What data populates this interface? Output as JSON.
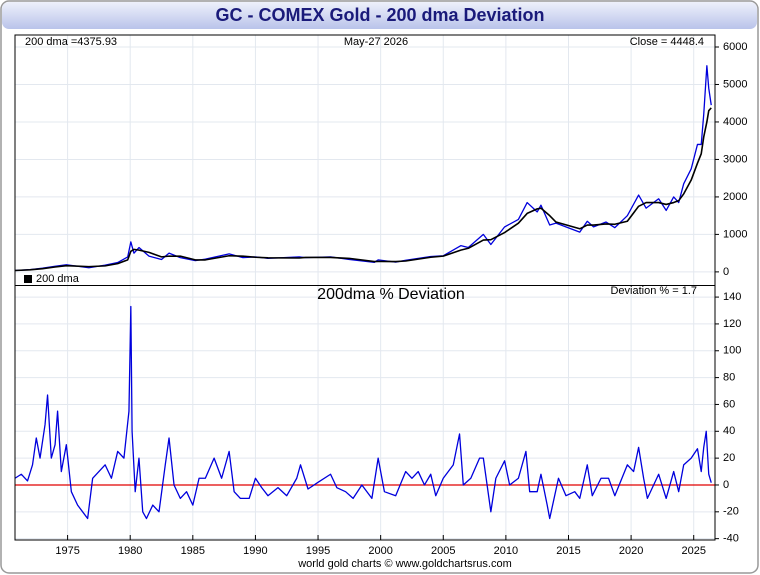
{
  "chart_data": [
    {
      "type": "line",
      "title": "GC - COMEX Gold - 200 dma Deviation",
      "dma_label": "200 dma =4375.93",
      "date": "May-27  2026",
      "close_label": "Close = 4448.4",
      "x": [
        1970.8,
        1972,
        1973,
        1974,
        1974.9,
        1976.7,
        1978,
        1979,
        1979.8,
        1980.05,
        1980.3,
        1980.7,
        1981.5,
        1982.5,
        1983.1,
        1984,
        1985.2,
        1986,
        1987.9,
        1989,
        1990,
        1991,
        1993.5,
        1994,
        1996,
        1997.5,
        1999.5,
        1999.8,
        2001.2,
        2002,
        2003,
        2004,
        2005,
        2006.4,
        2007,
        2008.2,
        2008.8,
        2009.9,
        2011,
        2011.7,
        2012.5,
        2012.8,
        2013.5,
        2014,
        2015.9,
        2016.5,
        2017,
        2018,
        2018.7,
        2019.7,
        2020.6,
        2021.2,
        2022.2,
        2022.8,
        2023.4,
        2023.8,
        2024.2,
        2024.8,
        2025.3,
        2025.6,
        2025.8,
        2026.05,
        2026.2,
        2026.4
      ],
      "series": [
        {
          "color": "#0000dd",
          "values": [
            37,
            60,
            100,
            150,
            190,
            110,
            180,
            250,
            400,
            800,
            500,
            650,
            420,
            330,
            500,
            380,
            300,
            340,
            480,
            380,
            400,
            360,
            400,
            380,
            400,
            330,
            255,
            320,
            260,
            310,
            360,
            410,
            430,
            700,
            650,
            1000,
            730,
            1200,
            1400,
            1850,
            1600,
            1780,
            1250,
            1300,
            1060,
            1350,
            1200,
            1330,
            1180,
            1500,
            2050,
            1700,
            1950,
            1640,
            2000,
            1850,
            2350,
            2750,
            3400,
            3400,
            4200,
            5500,
            4900,
            4448.4
          ]
        },
        {
          "name": "200 dma",
          "color": "#000000",
          "values": [
            37,
            55,
            85,
            130,
            165,
            140,
            160,
            220,
            320,
            550,
            600,
            580,
            520,
            400,
            420,
            420,
            320,
            320,
            430,
            420,
            390,
            375,
            370,
            385,
            385,
            360,
            275,
            280,
            275,
            290,
            340,
            390,
            420,
            580,
            630,
            850,
            860,
            1050,
            1300,
            1560,
            1680,
            1700,
            1500,
            1330,
            1150,
            1250,
            1250,
            1280,
            1270,
            1350,
            1750,
            1850,
            1850,
            1800,
            1850,
            1900,
            2080,
            2450,
            2900,
            3150,
            3600,
            4000,
            4300,
            4375.93
          ]
        }
      ],
      "xlim": [
        1970.8,
        2026.7
      ],
      "xticks": [
        1975,
        1980,
        1985,
        1990,
        1995,
        2000,
        2005,
        2010,
        2015,
        2020,
        2025
      ],
      "ylim": [
        -350,
        6320
      ],
      "yticks": [
        0,
        1000,
        2000,
        3000,
        4000,
        5000,
        6000
      ],
      "grid": true
    },
    {
      "type": "line",
      "title": "200dma  %  Deviation",
      "deviation_label": "Deviation % = 1.7",
      "footer": "world gold charts © www.goldchartsrus.com",
      "x": [
        1970.8,
        1971.3,
        1971.8,
        1972.2,
        1972.5,
        1972.8,
        1973.2,
        1973.4,
        1973.7,
        1974.0,
        1974.2,
        1974.5,
        1974.9,
        1975.3,
        1975.8,
        1976.2,
        1976.6,
        1977.0,
        1977.5,
        1978.0,
        1978.5,
        1979.0,
        1979.5,
        1979.9,
        1980.05,
        1980.15,
        1980.4,
        1980.7,
        1981.0,
        1981.3,
        1981.8,
        1982.3,
        1982.8,
        1983.1,
        1983.5,
        1984.0,
        1984.5,
        1985.0,
        1985.5,
        1986.0,
        1986.7,
        1987.3,
        1987.9,
        1988.3,
        1988.8,
        1989.5,
        1990.0,
        1990.5,
        1991.0,
        1991.8,
        1992.5,
        1993.3,
        1993.6,
        1994.2,
        1995,
        1996,
        1996.5,
        1997.2,
        1997.8,
        1998.5,
        1999.3,
        1999.8,
        2000.3,
        2001.2,
        2002,
        2002.5,
        2003,
        2003.5,
        2004,
        2004.4,
        2005,
        2005.8,
        2006.3,
        2006.6,
        2007.2,
        2007.9,
        2008.2,
        2008.8,
        2009.2,
        2009.9,
        2010.3,
        2011.0,
        2011.6,
        2011.9,
        2012.5,
        2012.8,
        2013.3,
        2013.5,
        2014.2,
        2014.8,
        2015.5,
        2015.9,
        2016.5,
        2016.9,
        2017.6,
        2018.2,
        2018.7,
        2019.7,
        2020.2,
        2020.6,
        2021.0,
        2021.3,
        2022.2,
        2022.8,
        2023.4,
        2023.8,
        2024.2,
        2024.8,
        2025.3,
        2025.6,
        2025.8,
        2026.0,
        2026.2,
        2026.4
      ],
      "series": [
        {
          "color": "#0000dd",
          "values": [
            5,
            8,
            3,
            15,
            35,
            20,
            45,
            67,
            20,
            30,
            55,
            10,
            30,
            -5,
            -15,
            -20,
            -25,
            5,
            10,
            15,
            5,
            25,
            20,
            55,
            133,
            40,
            -5,
            20,
            -20,
            -25,
            -15,
            -20,
            15,
            35,
            0,
            -10,
            -5,
            -15,
            5,
            5,
            20,
            5,
            25,
            -5,
            -10,
            -10,
            5,
            -2,
            -8,
            -2,
            -8,
            5,
            15,
            -3,
            2,
            8,
            -2,
            -5,
            -10,
            0,
            -10,
            20,
            -5,
            -8,
            10,
            5,
            10,
            0,
            8,
            -8,
            5,
            15,
            38,
            0,
            5,
            20,
            20,
            -20,
            5,
            18,
            0,
            5,
            25,
            -5,
            -5,
            8,
            -15,
            -25,
            5,
            -8,
            -5,
            -10,
            15,
            -8,
            5,
            5,
            -8,
            15,
            10,
            28,
            5,
            -10,
            8,
            -10,
            10,
            -5,
            15,
            20,
            27,
            10,
            28,
            40,
            8,
            1.7
          ]
        }
      ],
      "reference_line": {
        "value": 0,
        "color": "#e00000"
      },
      "xlim": [
        1970.8,
        2026.7
      ],
      "xticks": [
        1975,
        1980,
        1985,
        1990,
        1995,
        2000,
        2005,
        2010,
        2015,
        2020,
        2025
      ],
      "ylim": [
        -41,
        149
      ],
      "yticks": [
        -40,
        -20,
        0,
        20,
        40,
        60,
        80,
        100,
        120,
        140
      ],
      "grid": true
    }
  ]
}
